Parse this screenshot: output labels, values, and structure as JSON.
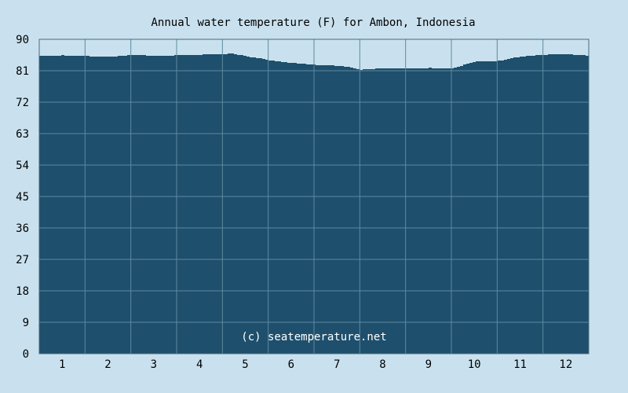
{
  "chart_data": {
    "type": "area",
    "title": "Annual water temperature (F) for Ambon, Indonesia",
    "xlabel": "",
    "ylabel": "",
    "ylim": [
      0,
      90
    ],
    "yticks": [
      "0",
      "9",
      "18",
      "27",
      "36",
      "45",
      "54",
      "63",
      "72",
      "81",
      "90"
    ],
    "categories": [
      "1",
      "2",
      "3",
      "4",
      "5",
      "6",
      "7",
      "8",
      "9",
      "10",
      "11",
      "12"
    ],
    "grid": true,
    "x": [
      0.0,
      0.5,
      1.0,
      1.5,
      2.0,
      2.5,
      3.0,
      3.5,
      4.0,
      4.2,
      4.5,
      4.8,
      5.0,
      5.5,
      6.0,
      6.5,
      6.8,
      7.0,
      7.5,
      8.0,
      8.5,
      9.0,
      9.5,
      10.0,
      10.5,
      11.0,
      11.5,
      12.0
    ],
    "values": [
      85.3,
      85.4,
      85.2,
      85.0,
      85.5,
      85.3,
      85.4,
      85.6,
      85.8,
      85.9,
      85.1,
      84.5,
      84.0,
      83.2,
      82.7,
      82.4,
      81.9,
      81.3,
      81.7,
      81.6,
      81.8,
      81.7,
      83.7,
      83.8,
      85.1,
      85.6,
      85.7,
      85.3
    ],
    "colors": {
      "background": "#c9e1ee",
      "plot_fill": "#1e4f6c",
      "grid": "#5e8aa2",
      "axis": "#4a6a80"
    },
    "watermark": "(c) seatemperature.net"
  }
}
